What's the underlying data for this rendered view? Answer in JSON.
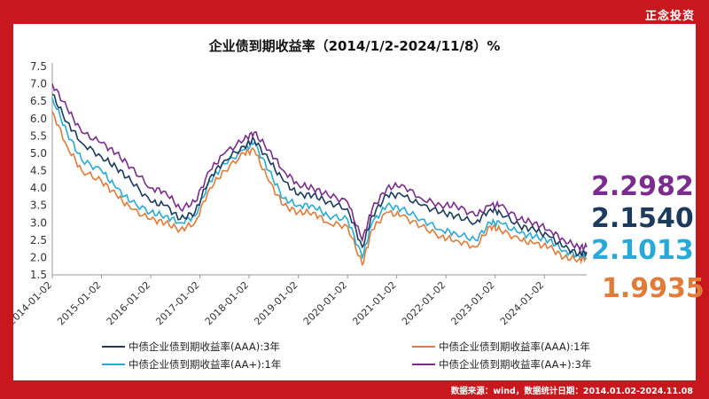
{
  "brand": "正念投资",
  "source": "数据来源：wind，数据统计日期：2014.01.02-2024.11.08",
  "chart_data": {
    "type": "line",
    "title": "企业债到期收益率（2014/1/2-2024/11/8）%",
    "ylim": [
      1.5,
      7.5
    ],
    "yticks": [
      "1.5",
      "2.0",
      "2.5",
      "3.0",
      "3.5",
      "4.0",
      "4.5",
      "5.0",
      "5.5",
      "6.0",
      "6.5",
      "7.0",
      "7.5"
    ],
    "xticks": [
      "2014-01-02",
      "2015-01-02",
      "2016-01-02",
      "2017-01-02",
      "2018-01-02",
      "2019-01-02",
      "2020-01-02",
      "2021-01-02",
      "2022-01-02",
      "2023-01-02",
      "2024-01-02"
    ],
    "x": [
      2014.0,
      2014.3,
      2014.6,
      2015.0,
      2015.3,
      2015.6,
      2016.0,
      2016.3,
      2016.6,
      2016.9,
      2017.2,
      2017.5,
      2017.9,
      2018.1,
      2018.4,
      2018.7,
      2019.0,
      2019.3,
      2019.6,
      2020.0,
      2020.3,
      2020.5,
      2020.8,
      2021.1,
      2021.5,
      2021.9,
      2022.2,
      2022.6,
      2022.9,
      2023.1,
      2023.5,
      2023.8,
      2024.1,
      2024.4,
      2024.7,
      2024.86
    ],
    "grid": false,
    "legend": "bottom",
    "series": [
      {
        "name": "中债企业债到期收益率(AAA):3年",
        "color": "#1b3a5c",
        "end_label": "2.1540",
        "values": [
          6.7,
          5.9,
          5.3,
          4.9,
          4.6,
          4.2,
          3.6,
          3.5,
          3.1,
          3.3,
          4.3,
          4.8,
          5.2,
          5.4,
          4.8,
          4.2,
          3.8,
          3.8,
          3.6,
          3.4,
          2.3,
          3.2,
          3.8,
          3.8,
          3.5,
          3.3,
          3.2,
          3.0,
          3.4,
          3.3,
          2.9,
          2.8,
          2.6,
          2.3,
          2.1,
          2.154
        ]
      },
      {
        "name": "中债企业债到期收益率(AAA):1年",
        "color": "#e07b39",
        "end_label": "1.9935",
        "values": [
          6.2,
          5.2,
          4.5,
          4.2,
          3.8,
          3.4,
          3.1,
          3.0,
          2.8,
          3.0,
          4.0,
          4.5,
          5.0,
          5.1,
          4.2,
          3.5,
          3.3,
          3.3,
          3.0,
          2.9,
          1.8,
          2.8,
          3.3,
          3.2,
          2.9,
          2.6,
          2.5,
          2.3,
          2.9,
          2.8,
          2.5,
          2.4,
          2.3,
          2.0,
          1.95,
          1.9935
        ]
      },
      {
        "name": "中债企业债到期收益率(AA+):1年",
        "color": "#29a9d8",
        "end_label": "2.1013",
        "values": [
          6.6,
          5.6,
          4.8,
          4.5,
          4.0,
          3.6,
          3.3,
          3.2,
          3.0,
          3.2,
          4.2,
          4.7,
          5.1,
          5.3,
          4.5,
          3.7,
          3.5,
          3.5,
          3.2,
          3.1,
          2.0,
          3.0,
          3.5,
          3.4,
          3.1,
          2.8,
          2.7,
          2.5,
          3.0,
          3.0,
          2.7,
          2.6,
          2.5,
          2.2,
          2.05,
          2.1013
        ]
      },
      {
        "name": "中债企业债到期收益率(AA+):3年",
        "color": "#7b2d8e",
        "end_label": "2.2982",
        "values": [
          7.0,
          6.3,
          5.6,
          5.3,
          5.0,
          4.6,
          4.0,
          3.9,
          3.4,
          3.6,
          4.5,
          5.0,
          5.4,
          5.6,
          5.1,
          4.5,
          4.1,
          4.0,
          3.8,
          3.6,
          2.5,
          3.4,
          4.0,
          4.1,
          3.7,
          3.5,
          3.5,
          3.2,
          3.5,
          3.5,
          3.1,
          3.0,
          2.8,
          2.5,
          2.3,
          2.2982
        ]
      }
    ]
  }
}
